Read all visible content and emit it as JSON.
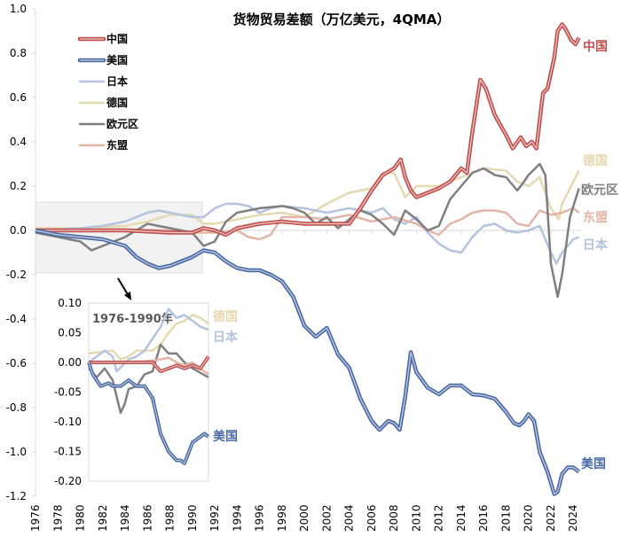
{
  "chart_data": {
    "type": "line",
    "title": "货物贸易差额（万亿美元，4QMA）",
    "xlabel": "",
    "ylabel": "",
    "xlim": [
      1976,
      2025
    ],
    "ylim": [
      -1.2,
      1.0
    ],
    "x_ticks": [
      "1976",
      "1978",
      "1980",
      "1982",
      "1984",
      "1986",
      "1988",
      "1990",
      "1992",
      "1994",
      "1996",
      "1998",
      "2000",
      "2002",
      "2004",
      "2006",
      "2008",
      "2010",
      "2012",
      "2014",
      "2016",
      "2018",
      "2020",
      "2022",
      "2024"
    ],
    "y_ticks": [
      "1.0",
      "0.8",
      "0.6",
      "0.4",
      "0.2",
      "0.0",
      "-0.2",
      "-0.4",
      "-0.6",
      "-0.8",
      "-1.0",
      "-1.2"
    ],
    "grid": false,
    "legend_position": "top-left",
    "series": [
      {
        "name": "中国",
        "color": "#c0504d",
        "double": true,
        "x": [
          1976,
          1980,
          1984,
          1988,
          1990,
          1991,
          1992,
          1993,
          1994,
          1996,
          1998,
          2000,
          2002,
          2004,
          2005,
          2006,
          2007,
          2008,
          2008.6,
          2009,
          2009.5,
          2010,
          2011,
          2012,
          2013,
          2014,
          2014.5,
          2015,
          2015.7,
          2016.2,
          2017,
          2018,
          2018.6,
          2019.3,
          2019.8,
          2020.3,
          2020.7,
          2021.3,
          2021.7,
          2022.3,
          2022.6,
          2023,
          2023.3,
          2023.8,
          2024.2,
          2024.5
        ],
        "y": [
          0,
          0,
          0,
          -0.01,
          -0.01,
          0.01,
          0.0,
          -0.02,
          0.01,
          0.03,
          0.04,
          0.03,
          0.03,
          0.03,
          0.1,
          0.18,
          0.25,
          0.28,
          0.32,
          0.24,
          0.18,
          0.15,
          0.17,
          0.19,
          0.22,
          0.28,
          0.26,
          0.45,
          0.68,
          0.64,
          0.52,
          0.43,
          0.37,
          0.42,
          0.38,
          0.4,
          0.37,
          0.62,
          0.64,
          0.78,
          0.9,
          0.93,
          0.91,
          0.86,
          0.84,
          0.87
        ]
      },
      {
        "name": "美国",
        "color": "#4a6aa5",
        "double": true,
        "x": [
          1976,
          1978,
          1980,
          1982,
          1984,
          1985,
          1986,
          1987,
          1988,
          1989,
          1990,
          1991,
          1992,
          1993,
          1994,
          1995,
          1996,
          1997,
          1998,
          1999,
          2000,
          2001,
          2002,
          2003,
          2004,
          2005,
          2006,
          2006.7,
          2007.5,
          2008,
          2008.5,
          2009,
          2009.5,
          2010,
          2011,
          2012,
          2013,
          2014,
          2015,
          2016,
          2017,
          2018,
          2018.7,
          2019.2,
          2019.6,
          2020,
          2020.5,
          2021,
          2021.7,
          2022.3,
          2022.6,
          2023,
          2023.5,
          2024,
          2024.5
        ],
        "y": [
          0,
          -0.02,
          -0.03,
          -0.04,
          -0.07,
          -0.12,
          -0.15,
          -0.17,
          -0.16,
          -0.14,
          -0.12,
          -0.09,
          -0.1,
          -0.14,
          -0.17,
          -0.18,
          -0.18,
          -0.2,
          -0.23,
          -0.3,
          -0.43,
          -0.48,
          -0.44,
          -0.56,
          -0.62,
          -0.76,
          -0.86,
          -0.9,
          -0.86,
          -0.87,
          -0.9,
          -0.75,
          -0.55,
          -0.64,
          -0.71,
          -0.74,
          -0.7,
          -0.7,
          -0.74,
          -0.745,
          -0.76,
          -0.82,
          -0.87,
          -0.88,
          -0.86,
          -0.83,
          -0.86,
          -1.0,
          -1.09,
          -1.19,
          -1.18,
          -1.1,
          -1.07,
          -1.07,
          -1.09
        ]
      },
      {
        "name": "日本",
        "color": "#b4c3de",
        "x": [
          1976,
          1980,
          1982,
          1984,
          1986,
          1987,
          1988,
          1990,
          1991,
          1992,
          1993,
          1994,
          1995,
          1996,
          1997,
          1998,
          2000,
          2002,
          2004,
          2006,
          2007,
          2008,
          2009,
          2010,
          2011,
          2012,
          2013,
          2014,
          2015,
          2016,
          2017,
          2018,
          2019,
          2020,
          2021,
          2022,
          2022.5,
          2023,
          2024,
          2024.5
        ],
        "y": [
          0,
          0.01,
          0.02,
          0.04,
          0.08,
          0.09,
          0.08,
          0.06,
          0.06,
          0.1,
          0.12,
          0.12,
          0.11,
          0.08,
          0.1,
          0.11,
          0.1,
          0.08,
          0.1,
          0.08,
          0.1,
          0.05,
          0.03,
          0.06,
          -0.01,
          -0.06,
          -0.09,
          -0.1,
          -0.03,
          0.02,
          0.03,
          0.0,
          -0.01,
          0.0,
          0.02,
          -0.1,
          -0.15,
          -0.1,
          -0.04,
          -0.03
        ]
      },
      {
        "name": "德国",
        "color": "#e5d9b0",
        "x": [
          1976,
          1980,
          1984,
          1986,
          1988,
          1990,
          1991,
          1992,
          1994,
          1996,
          1998,
          2000,
          2002,
          2004,
          2006,
          2007,
          2008,
          2009,
          2010,
          2012,
          2014,
          2016,
          2018,
          2019,
          2020,
          2021,
          2022,
          2022.7,
          2023,
          2024,
          2024.5
        ],
        "y": [
          0.01,
          0.01,
          0.02,
          0.04,
          0.07,
          0.07,
          0.03,
          0.03,
          0.05,
          0.07,
          0.08,
          0.06,
          0.12,
          0.17,
          0.19,
          0.26,
          0.26,
          0.15,
          0.2,
          0.2,
          0.24,
          0.28,
          0.27,
          0.22,
          0.2,
          0.24,
          0.1,
          0.05,
          0.12,
          0.22,
          0.27
        ]
      },
      {
        "name": "欧元区",
        "color": "#7f7f7f",
        "x": [
          1976,
          1978,
          1980,
          1981,
          1982,
          1984,
          1986,
          1988,
          1990,
          1991,
          1992,
          1993,
          1994,
          1996,
          1998,
          1999,
          2000,
          2001,
          2002,
          2003,
          2004,
          2005,
          2006,
          2007,
          2008,
          2009,
          2010,
          2011,
          2012,
          2013,
          2014,
          2015,
          2016,
          2017,
          2018,
          2019,
          2019.6,
          2020,
          2021,
          2021.5,
          2022,
          2022.6,
          2023,
          2023.7,
          2024.5
        ],
        "y": [
          -0.01,
          -0.03,
          -0.05,
          -0.09,
          -0.07,
          -0.03,
          0.03,
          0.01,
          -0.01,
          -0.07,
          -0.05,
          0.04,
          0.08,
          0.1,
          0.11,
          0.1,
          0.08,
          0.03,
          0.06,
          0.01,
          0.05,
          0.09,
          0.07,
          0.03,
          -0.02,
          0.09,
          0.05,
          0.0,
          0.02,
          0.14,
          0.2,
          0.26,
          0.28,
          0.25,
          0.24,
          0.18,
          0.22,
          0.25,
          0.3,
          0.25,
          -0.15,
          -0.3,
          -0.2,
          0.06,
          0.19
        ]
      },
      {
        "name": "东盟",
        "color": "#e2b5a8",
        "x": [
          1976,
          1984,
          1988,
          1990,
          1992,
          1994,
          1995,
          1996,
          1997,
          1998,
          2000,
          2002,
          2004,
          2006,
          2008,
          2010,
          2011,
          2012,
          2013,
          2014,
          2015,
          2016,
          2017,
          2018,
          2019,
          2020,
          2021,
          2022,
          2023,
          2024,
          2024.5
        ],
        "y": [
          0,
          0.005,
          0,
          -0.01,
          -0.01,
          0.0,
          -0.03,
          -0.04,
          -0.02,
          0.06,
          0.06,
          0.05,
          0.07,
          0.04,
          0.06,
          0.03,
          0.0,
          -0.02,
          0.03,
          0.05,
          0.08,
          0.09,
          0.09,
          0.08,
          0.03,
          0.02,
          0.09,
          0.07,
          0.08,
          0.1,
          0.08
        ]
      }
    ],
    "inset": {
      "title": "1976-1990年",
      "xlim": [
        1976,
        1991
      ],
      "ylim": [
        -0.2,
        0.1
      ],
      "y_ticks": [
        "0.10",
        "0.05",
        "0.00",
        "-0.05",
        "-0.10",
        "-0.15",
        "-0.20"
      ],
      "series": [
        {
          "name": "中国",
          "x": [
            1976,
            1984,
            1985,
            1986,
            1987,
            1988,
            1989,
            1990,
            1991
          ],
          "y": [
            0,
            0,
            -0.015,
            -0.01,
            -0.005,
            -0.01,
            -0.005,
            -0.01,
            0.01
          ]
        },
        {
          "name": "美国",
          "x": [
            1976,
            1976.5,
            1977.5,
            1978.5,
            1979,
            1980,
            1981,
            1982,
            1983,
            1984,
            1985,
            1986,
            1987,
            1987.5,
            1988,
            1989,
            1990,
            1990.5,
            1991
          ],
          "y": [
            0,
            -0.02,
            -0.04,
            -0.035,
            -0.04,
            -0.04,
            -0.03,
            -0.04,
            -0.04,
            -0.06,
            -0.12,
            -0.15,
            -0.165,
            -0.165,
            -0.17,
            -0.135,
            -0.125,
            -0.12,
            -0.125
          ]
        },
        {
          "name": "日本",
          "x": [
            1976,
            1978,
            1979,
            1979.5,
            1981,
            1982,
            1983,
            1984,
            1985,
            1986,
            1987,
            1988,
            1989,
            1990,
            1991
          ],
          "y": [
            0,
            0.02,
            0.01,
            -0.015,
            0.005,
            0.01,
            0.02,
            0.04,
            0.06,
            0.09,
            0.075,
            0.08,
            0.07,
            0.06,
            0.055
          ]
        },
        {
          "name": "德国",
          "x": [
            1976,
            1979,
            1980,
            1981,
            1982,
            1984,
            1985,
            1986,
            1987,
            1988,
            1989,
            1990,
            1991
          ],
          "y": [
            0.015,
            0.02,
            0.005,
            0.01,
            0.02,
            0.02,
            0.03,
            0.05,
            0.065,
            0.07,
            0.08,
            0.075,
            0.065
          ]
        },
        {
          "name": "欧元区",
          "x": [
            1976,
            1977,
            1978,
            1979,
            1980,
            1980.5,
            1981,
            1982,
            1983,
            1984,
            1985,
            1986,
            1987,
            1988,
            1989,
            1991
          ],
          "y": [
            -0.01,
            -0.025,
            -0.01,
            -0.03,
            -0.085,
            -0.07,
            -0.045,
            -0.04,
            -0.02,
            -0.015,
            0.03,
            0.015,
            0.015,
            0.0,
            -0.01,
            -0.025
          ]
        },
        {
          "name": "东盟",
          "x": [
            1976,
            1983,
            1985,
            1986,
            1987,
            1988,
            1989,
            1990,
            1991
          ],
          "y": [
            0,
            0.002,
            0.005,
            0.008,
            0.0,
            -0.005,
            0.0,
            -0.01,
            -0.02
          ]
        }
      ],
      "end_labels": [
        "德国",
        "日本",
        "美国"
      ]
    },
    "end_labels": [
      "中国",
      "德国",
      "欧元区",
      "东盟",
      "日本",
      "美国"
    ]
  }
}
